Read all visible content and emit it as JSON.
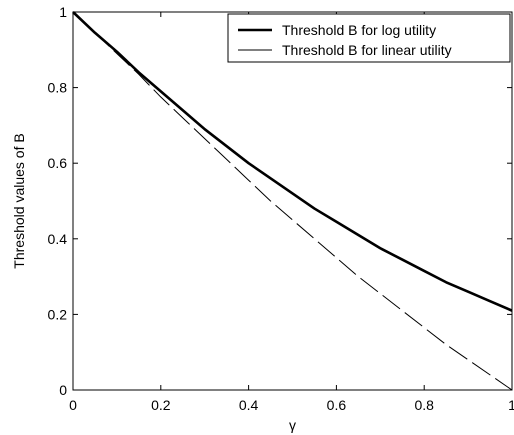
{
  "chart_data": {
    "type": "line",
    "title": "",
    "xlabel": "γ",
    "ylabel": "Threshold values of B",
    "xlim": [
      0,
      1
    ],
    "ylim": [
      0,
      1
    ],
    "x_ticks": [
      "0",
      "0.2",
      "0.4",
      "0.6",
      "0.8",
      "1"
    ],
    "y_ticks": [
      "0",
      "0.2",
      "0.4",
      "0.6",
      "0.8",
      "1"
    ],
    "grid": false,
    "legend_position": "top-right",
    "series": [
      {
        "name": "Threshold B for log utility",
        "style": "thick-solid",
        "color": "#000000",
        "x": [
          0,
          0.05,
          0.1,
          0.15,
          0.2,
          0.25,
          0.3,
          0.35,
          0.4,
          0.45,
          0.5,
          0.55,
          0.6,
          0.65,
          0.7,
          0.75,
          0.8,
          0.85,
          0.9,
          0.95,
          1.0
        ],
        "y": [
          1.0,
          0.945,
          0.895,
          0.84,
          0.79,
          0.74,
          0.69,
          0.645,
          0.6,
          0.56,
          0.52,
          0.48,
          0.445,
          0.41,
          0.375,
          0.345,
          0.315,
          0.285,
          0.26,
          0.235,
          0.21
        ]
      },
      {
        "name": "Threshold B for linear utility",
        "style": "thin-dashed",
        "color": "#000000",
        "x": [
          0,
          0.05,
          0.1,
          0.15,
          0.2,
          0.25,
          0.3,
          0.35,
          0.4,
          0.45,
          0.5,
          0.55,
          0.6,
          0.65,
          0.7,
          0.75,
          0.8,
          0.85,
          0.9,
          0.95,
          1.0
        ],
        "y": [
          1.0,
          0.945,
          0.89,
          0.835,
          0.775,
          0.72,
          0.665,
          0.61,
          0.555,
          0.5,
          0.45,
          0.4,
          0.35,
          0.3,
          0.255,
          0.21,
          0.165,
          0.12,
          0.08,
          0.04,
          0.0
        ]
      }
    ]
  }
}
